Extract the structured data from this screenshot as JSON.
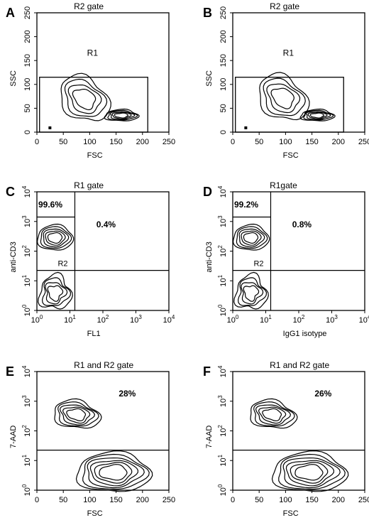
{
  "chart_data": [
    {
      "panel": "A",
      "type": "scatter",
      "title": "R2 gate",
      "xlabel": "FSC",
      "ylabel": "SSC",
      "x_ticks": [
        "0",
        "50",
        "100",
        "150",
        "200",
        "250"
      ],
      "y_ticks": [
        "0",
        "50",
        "100",
        "150",
        "200",
        "250"
      ],
      "xlim": [
        0,
        250
      ],
      "ylim": [
        0,
        250
      ],
      "gate_label": "R1",
      "gate": {
        "x": [
          5,
          210
        ],
        "y": [
          0,
          115
        ]
      },
      "populations": [
        {
          "cx": 90,
          "cy": 70,
          "rx": 50,
          "ry": 40
        },
        {
          "cx": 160,
          "cy": 35,
          "rx": 35,
          "ry": 10
        }
      ]
    },
    {
      "panel": "B",
      "type": "scatter",
      "title": "R2 gate",
      "xlabel": "FSC",
      "ylabel": "SSC",
      "x_ticks": [
        "0",
        "50",
        "100",
        "150",
        "200",
        "250"
      ],
      "y_ticks": [
        "0",
        "50",
        "100",
        "150",
        "200",
        "250"
      ],
      "xlim": [
        0,
        250
      ],
      "ylim": [
        0,
        250
      ],
      "gate_label": "R1",
      "gate": {
        "x": [
          5,
          210
        ],
        "y": [
          0,
          115
        ]
      },
      "populations": [
        {
          "cx": 95,
          "cy": 72,
          "rx": 50,
          "ry": 40
        },
        {
          "cx": 160,
          "cy": 35,
          "rx": 35,
          "ry": 10
        }
      ]
    },
    {
      "panel": "C",
      "type": "scatter",
      "title": "R1 gate",
      "xlabel": "FL1",
      "ylabel": "anti-CD3",
      "scale": "log",
      "x_ticks": [
        "10^0",
        "10^1",
        "10^2",
        "10^3",
        "10^4"
      ],
      "y_ticks": [
        "10^0",
        "10^1",
        "10^2",
        "10^3",
        "10^4"
      ],
      "quadrant_upper_left": "99.6%",
      "quadrant_upper_right": "0.4%",
      "gate_label": "R2"
    },
    {
      "panel": "D",
      "type": "scatter",
      "title": "R1gate",
      "xlabel": "IgG1 isotype",
      "ylabel": "anti-CD3",
      "scale": "log",
      "x_ticks": [
        "10^0",
        "10^1",
        "10^2",
        "10^3",
        "10^4"
      ],
      "y_ticks": [
        "10^0",
        "10^1",
        "10^2",
        "10^3",
        "10^4"
      ],
      "quadrant_upper_left": "99.2%",
      "quadrant_upper_right": "0.8%",
      "gate_label": "R2"
    },
    {
      "panel": "E",
      "type": "scatter",
      "title": "R1 and R2 gate",
      "xlabel": "FSC",
      "ylabel": "7-AAD",
      "x_ticks": [
        "0",
        "50",
        "100",
        "150",
        "200",
        "250"
      ],
      "y_ticks": [
        "10^0",
        "10^1",
        "10^2",
        "10^3",
        "10^4"
      ],
      "upper_percent": "28%"
    },
    {
      "panel": "F",
      "type": "scatter",
      "title": "R1 and R2 gate",
      "xlabel": "FSC",
      "ylabel": "7-AAD",
      "x_ticks": [
        "0",
        "50",
        "100",
        "150",
        "200",
        "250"
      ],
      "y_ticks": [
        "10^0",
        "10^1",
        "10^2",
        "10^3",
        "10^4"
      ],
      "upper_percent": "26%"
    }
  ]
}
